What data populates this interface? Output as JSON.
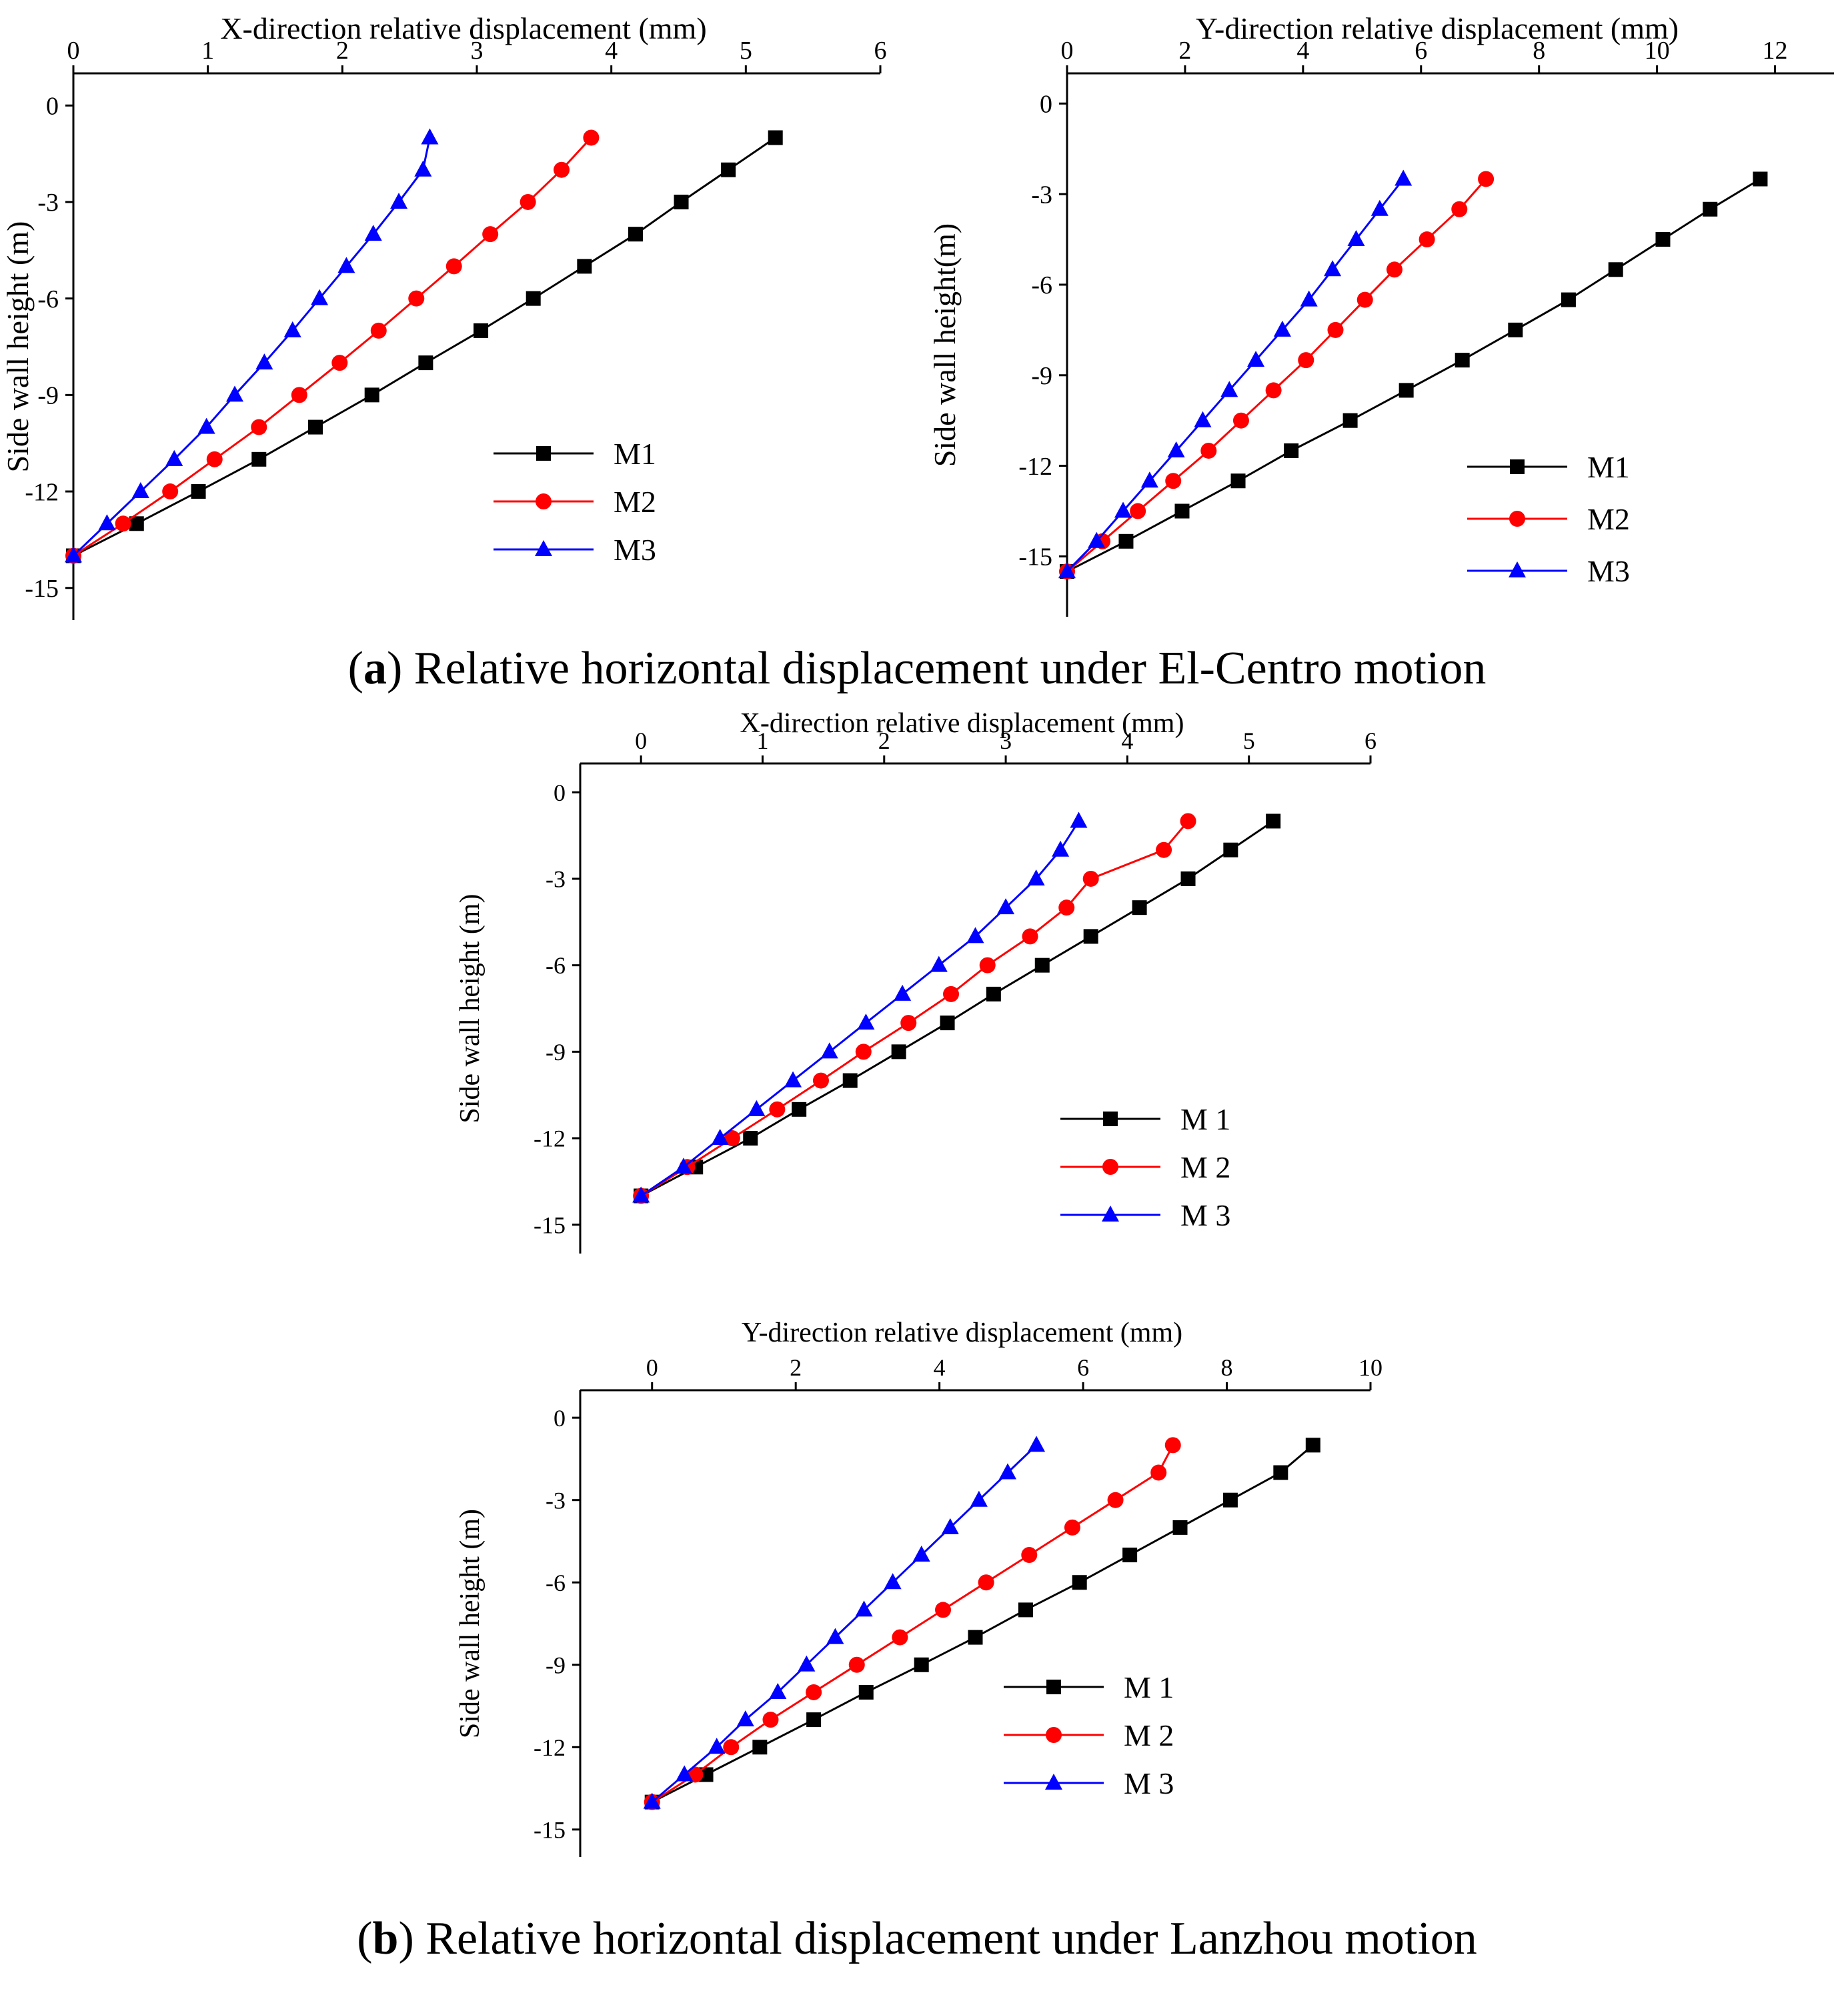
{
  "captions": {
    "a": {
      "prefix": "(",
      "letter": "a",
      "text": ") Relative horizontal displacement under El-Centro motion"
    },
    "b": {
      "prefix": "(",
      "letter": "b",
      "text": ") Relative horizontal displacement under Lanzhou motion"
    }
  },
  "colors": {
    "M1": "#000000",
    "M2": "#ff0000",
    "M3": "#0000ff"
  },
  "chart_data": [
    {
      "id": "a-x",
      "type": "line",
      "title": "",
      "xlabel": "X-direction  relative displacement (mm)",
      "ylabel": "Side wall height (m)",
      "xlim": [
        0,
        6
      ],
      "ylim": [
        -16,
        1
      ],
      "xticks": [
        0,
        1,
        2,
        3,
        4,
        5,
        6
      ],
      "yticks": [
        0,
        -3,
        -6,
        -9,
        -12,
        -15
      ],
      "legend": {
        "position": "middle-right",
        "labels": [
          "M1",
          "M2",
          "M3"
        ]
      },
      "series": [
        {
          "name": "M1",
          "marker": "square",
          "x": [
            0,
            0.47,
            0.93,
            1.38,
            1.8,
            2.22,
            2.62,
            3.03,
            3.42,
            3.8,
            4.18,
            4.52,
            4.87,
            5.22
          ],
          "y": [
            -14,
            -13,
            -12,
            -11,
            -10,
            -9,
            -8,
            -7,
            -6,
            -5,
            -4,
            -3,
            -2,
            -1
          ]
        },
        {
          "name": "M2",
          "marker": "circle",
          "x": [
            0,
            0.37,
            0.72,
            1.05,
            1.38,
            1.68,
            1.98,
            2.27,
            2.55,
            2.83,
            3.1,
            3.38,
            3.63,
            3.85
          ],
          "y": [
            -14,
            -13,
            -12,
            -11,
            -10,
            -9,
            -8,
            -7,
            -6,
            -5,
            -4,
            -3,
            -2,
            -1
          ]
        },
        {
          "name": "M3",
          "marker": "triangle",
          "x": [
            0,
            0.25,
            0.5,
            0.75,
            0.99,
            1.2,
            1.42,
            1.63,
            1.83,
            2.03,
            2.23,
            2.42,
            2.6,
            2.65
          ],
          "y": [
            -14,
            -13,
            -12,
            -11,
            -10,
            -9,
            -8,
            -7,
            -6,
            -5,
            -4,
            -3,
            -2,
            -1
          ]
        }
      ]
    },
    {
      "id": "a-y",
      "type": "line",
      "title": "",
      "xlabel": "Y-direction  relative displacement (mm)",
      "ylabel": "Side wall height(m)",
      "xlim": [
        0,
        13
      ],
      "ylim": [
        -17,
        1
      ],
      "xticks": [
        0,
        2,
        4,
        6,
        8,
        10,
        12
      ],
      "yticks": [
        0,
        -3,
        -6,
        -9,
        -12,
        -15
      ],
      "legend": {
        "position": "lower-right",
        "labels": [
          "M1",
          "M2",
          "M3"
        ]
      },
      "series": [
        {
          "name": "M1",
          "marker": "square",
          "x": [
            0,
            1,
            1.95,
            2.9,
            3.8,
            4.8,
            5.75,
            6.7,
            7.6,
            8.5,
            9.3,
            10.1,
            10.9,
            11.75
          ],
          "y": [
            -15.5,
            -14.5,
            -13.5,
            -12.5,
            -11.5,
            -10.5,
            -9.5,
            -8.5,
            -7.5,
            -6.5,
            -5.5,
            -4.5,
            -3.5,
            -2.5
          ]
        },
        {
          "name": "M2",
          "marker": "circle",
          "x": [
            0,
            0.6,
            1.2,
            1.8,
            2.4,
            2.95,
            3.5,
            4.05,
            4.55,
            5.05,
            5.55,
            6.1,
            6.65,
            7.1
          ],
          "y": [
            -15.5,
            -14.5,
            -13.5,
            -12.5,
            -11.5,
            -10.5,
            -9.5,
            -8.5,
            -7.5,
            -6.5,
            -5.5,
            -4.5,
            -3.5,
            -2.5
          ]
        },
        {
          "name": "M3",
          "marker": "triangle",
          "x": [
            0,
            0.5,
            0.95,
            1.4,
            1.85,
            2.3,
            2.75,
            3.2,
            3.65,
            4.1,
            4.5,
            4.9,
            5.3,
            5.7
          ],
          "y": [
            -15.5,
            -14.5,
            -13.5,
            -12.5,
            -11.5,
            -10.5,
            -9.5,
            -8.5,
            -7.5,
            -6.5,
            -5.5,
            -4.5,
            -3.5,
            -2.5
          ]
        }
      ]
    },
    {
      "id": "b-x",
      "type": "line",
      "title": "",
      "xlabel": "X-direction relative displacement (mm)",
      "ylabel": "Side wall height (m)",
      "xlim": [
        -0.5,
        6
      ],
      "ylim": [
        -16,
        1
      ],
      "xticks": [
        0,
        1,
        2,
        3,
        4,
        5,
        6
      ],
      "yticks": [
        0,
        -3,
        -6,
        -9,
        -12,
        -15
      ],
      "legend": {
        "position": "lower-right",
        "labels": [
          "M 1",
          "M 2",
          "M 3"
        ]
      },
      "series": [
        {
          "name": "M 1",
          "marker": "square",
          "x": [
            0,
            0.45,
            0.9,
            1.3,
            1.72,
            2.12,
            2.52,
            2.9,
            3.3,
            3.7,
            4.1,
            4.5,
            4.85,
            5.2
          ],
          "y": [
            -14,
            -13,
            -12,
            -11,
            -10,
            -9,
            -8,
            -7,
            -6,
            -5,
            -4,
            -3,
            -2,
            -1
          ]
        },
        {
          "name": "M 2",
          "marker": "circle",
          "x": [
            0,
            0.38,
            0.75,
            1.12,
            1.48,
            1.83,
            2.2,
            2.55,
            2.85,
            3.2,
            3.5,
            3.7,
            4.3,
            4.5
          ],
          "y": [
            -14,
            -13,
            -12,
            -11,
            -10,
            -9,
            -8,
            -7,
            -6,
            -5,
            -4,
            -3,
            -2,
            -1
          ]
        },
        {
          "name": "M 3",
          "marker": "triangle",
          "x": [
            0,
            0.35,
            0.65,
            0.95,
            1.25,
            1.55,
            1.85,
            2.15,
            2.45,
            2.75,
            3.0,
            3.25,
            3.45,
            3.6
          ],
          "y": [
            -14,
            -13,
            -12,
            -11,
            -10,
            -9,
            -8,
            -7,
            -6,
            -5,
            -4,
            -3,
            -2,
            -1
          ]
        }
      ]
    },
    {
      "id": "b-y",
      "type": "line",
      "title": "",
      "xlabel": "Y-direction  relative displacement (mm)",
      "ylabel": "Side wall height (m)",
      "xlim": [
        -1,
        10
      ],
      "ylim": [
        -16,
        1
      ],
      "xticks": [
        0,
        2,
        4,
        6,
        8,
        10
      ],
      "yticks": [
        0,
        -3,
        -6,
        -9,
        -12,
        -15
      ],
      "legend": {
        "position": "lower-right",
        "labels": [
          "M 1",
          "M 2",
          "M 3"
        ]
      },
      "series": [
        {
          "name": "M 1",
          "marker": "square",
          "x": [
            0,
            0.75,
            1.5,
            2.25,
            2.98,
            3.75,
            4.5,
            5.2,
            5.95,
            6.65,
            7.35,
            8.05,
            8.75,
            9.2
          ],
          "y": [
            -14,
            -13,
            -12,
            -11,
            -10,
            -9,
            -8,
            -7,
            -6,
            -5,
            -4,
            -3,
            -2,
            -1
          ]
        },
        {
          "name": "M 2",
          "marker": "circle",
          "x": [
            0,
            0.6,
            1.1,
            1.65,
            2.25,
            2.85,
            3.45,
            4.05,
            4.65,
            5.25,
            5.85,
            6.45,
            7.05,
            7.25
          ],
          "y": [
            -14,
            -13,
            -12,
            -11,
            -10,
            -9,
            -8,
            -7,
            -6,
            -5,
            -4,
            -3,
            -2,
            -1
          ]
        },
        {
          "name": "M 3",
          "marker": "triangle",
          "x": [
            0,
            0.45,
            0.9,
            1.3,
            1.75,
            2.15,
            2.55,
            2.95,
            3.35,
            3.75,
            4.15,
            4.55,
            4.95,
            5.35
          ],
          "y": [
            -14,
            -13,
            -12,
            -11,
            -10,
            -9,
            -8,
            -7,
            -6,
            -5,
            -4,
            -3,
            -2,
            -1
          ]
        }
      ]
    }
  ]
}
